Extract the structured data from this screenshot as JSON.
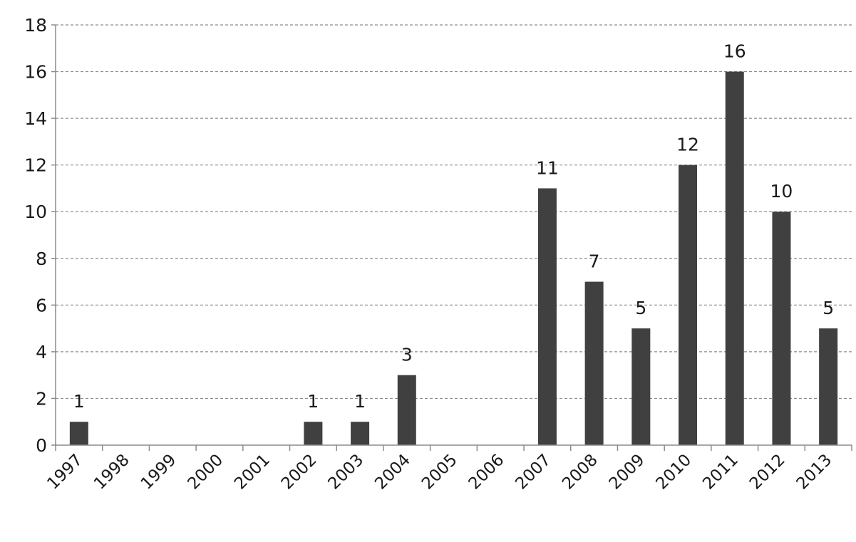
{
  "chart_data": {
    "type": "bar",
    "title": "",
    "xlabel": "",
    "ylabel": "",
    "categories": [
      "1997",
      "1998",
      "1999",
      "2000",
      "2001",
      "2002",
      "2003",
      "2004",
      "2005",
      "2006",
      "2007",
      "2008",
      "2009",
      "2010",
      "2011",
      "2012",
      "2013"
    ],
    "values": [
      1,
      0,
      0,
      0,
      0,
      1,
      1,
      3,
      0,
      0,
      11,
      7,
      5,
      12,
      16,
      10,
      5
    ],
    "data_labels": [
      "1",
      "",
      "",
      "",
      "",
      "1",
      "1",
      "3",
      "",
      "",
      "11",
      "7",
      "5",
      "12",
      "16",
      "10",
      "5"
    ],
    "ylim": [
      0,
      18
    ],
    "yticks": [
      0,
      2,
      4,
      6,
      8,
      10,
      12,
      14,
      16,
      18
    ],
    "ytick_labels": [
      "0",
      "2",
      "4",
      "6",
      "8",
      "10",
      "12",
      "14",
      "16",
      "18"
    ],
    "grid": "horizontal-dashed",
    "legend": "none",
    "bar_color": "#404040",
    "grid_color": "#8c8c8c",
    "axis_color": "#8c8c8c"
  }
}
